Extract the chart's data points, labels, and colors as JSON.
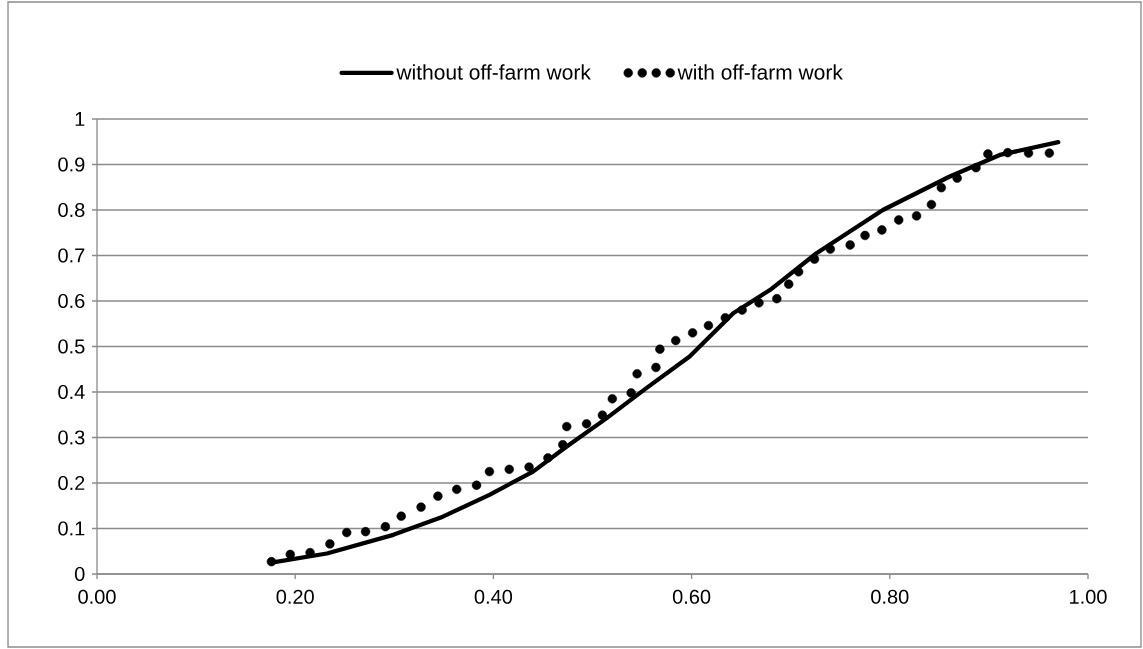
{
  "chart_data": {
    "type": "line",
    "xlim": [
      0,
      1
    ],
    "ylim": [
      0,
      1
    ],
    "xticks": [
      {
        "value": 0,
        "label": "0.00"
      },
      {
        "value": 0.2,
        "label": "0.20"
      },
      {
        "value": 0.4,
        "label": "0.40"
      },
      {
        "value": 0.6,
        "label": "0.60"
      },
      {
        "value": 0.8,
        "label": "0.80"
      },
      {
        "value": 1,
        "label": "1.00"
      }
    ],
    "yticks": [
      0,
      0.1,
      0.2,
      0.3,
      0.4,
      0.5,
      0.6,
      0.7,
      0.8,
      0.9,
      1
    ],
    "grid": "y",
    "legend": "top",
    "series": [
      {
        "name": "without off-farm work",
        "color": "#000000",
        "marker": "none",
        "line_style": "solid",
        "x": [
          0.176,
          0.232,
          0.299,
          0.349,
          0.396,
          0.44,
          0.474,
          0.514,
          0.554,
          0.598,
          0.642,
          0.679,
          0.726,
          0.793,
          0.86,
          0.911,
          0.97
        ],
        "values": [
          0.025,
          0.045,
          0.086,
          0.126,
          0.174,
          0.225,
          0.28,
          0.342,
          0.408,
          0.478,
          0.573,
          0.624,
          0.705,
          0.8,
          0.873,
          0.921,
          0.949
        ]
      },
      {
        "name": "with off-farm work",
        "type": "scatter",
        "color": "#000000",
        "marker": "circle",
        "x": [
          0.176,
          0.195,
          0.215,
          0.235,
          0.252,
          0.271,
          0.291,
          0.307,
          0.327,
          0.344,
          0.363,
          0.383,
          0.396,
          0.416,
          0.436,
          0.455,
          0.47,
          0.474,
          0.494,
          0.51,
          0.52,
          0.539,
          0.545,
          0.564,
          0.568,
          0.584,
          0.601,
          0.617,
          0.634,
          0.651,
          0.668,
          0.686,
          0.698,
          0.708,
          0.724,
          0.74,
          0.76,
          0.775,
          0.792,
          0.809,
          0.827,
          0.842,
          0.852,
          0.868,
          0.887,
          0.899,
          0.919,
          0.94,
          0.961
        ],
        "values": [
          0.027,
          0.043,
          0.047,
          0.066,
          0.091,
          0.093,
          0.104,
          0.127,
          0.147,
          0.171,
          0.186,
          0.195,
          0.225,
          0.23,
          0.235,
          0.255,
          0.284,
          0.324,
          0.33,
          0.349,
          0.385,
          0.398,
          0.44,
          0.454,
          0.494,
          0.513,
          0.53,
          0.546,
          0.563,
          0.58,
          0.596,
          0.605,
          0.637,
          0.664,
          0.692,
          0.714,
          0.723,
          0.744,
          0.756,
          0.778,
          0.787,
          0.812,
          0.849,
          0.87,
          0.893,
          0.923,
          0.926,
          0.925,
          0.925
        ]
      }
    ]
  }
}
